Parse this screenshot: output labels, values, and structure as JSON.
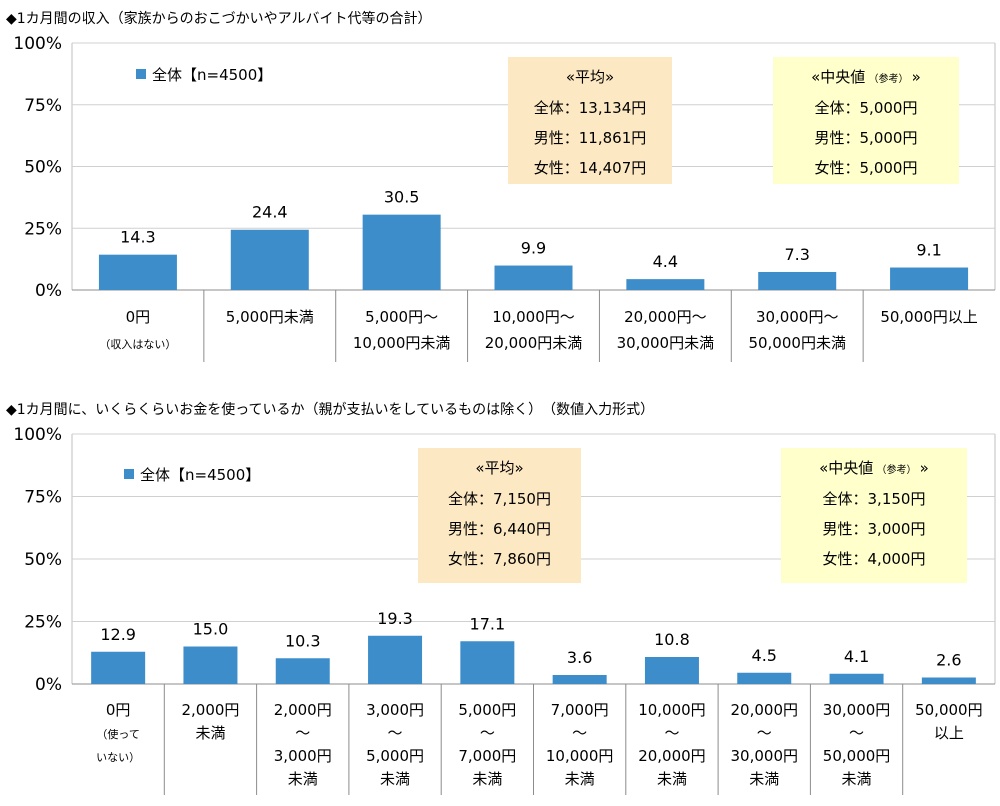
{
  "chart_data": [
    {
      "type": "bar",
      "title": "◆1カ月間の収入（家族からのおこづかいやアルバイト代等の合計）",
      "legend": "全体【n=4500】",
      "series": [
        {
          "name": "全体【n=4500】",
          "color": "#3C8DCA",
          "values": [
            14.3,
            24.4,
            30.5,
            9.9,
            4.4,
            7.3,
            9.1
          ]
        }
      ],
      "value_labels": [
        "14.3",
        "24.4",
        "30.5",
        "9.9",
        "4.4",
        "7.3",
        "9.1"
      ],
      "categories": [
        [
          "0円",
          "（収入はない）"
        ],
        [
          "5,000円未満"
        ],
        [
          "5,000円～",
          "10,000円未満"
        ],
        [
          "10,000円～",
          "20,000円未満"
        ],
        [
          "20,000円～",
          "30,000円未満"
        ],
        [
          "30,000円～",
          "50,000円未満"
        ],
        [
          "50,000円以上"
        ]
      ],
      "ylim": [
        0,
        100
      ],
      "yticks": [
        "0%",
        "25%",
        "50%",
        "75%",
        "100%"
      ],
      "grid": true,
      "xlabel": "",
      "ylabel": "",
      "boxes": [
        {
          "title": "«平均»",
          "lines": [
            "全体：13,134円",
            "男性：11,861円",
            "女性：14,407円"
          ],
          "color": "#FCE8C3"
        },
        {
          "title": "«中央値",
          "title_small": "（参考）",
          "title_end": "»",
          "lines": [
            "全体：5,000円",
            "男性：5,000円",
            "女性：5,000円"
          ],
          "color": "#FFFFCC"
        }
      ]
    },
    {
      "type": "bar",
      "title": "◆1カ月間に、いくらくらいお金を使っているか（親が支払いをしているものは除く）　（数値入力形式）",
      "legend": "全体【n=4500】",
      "series": [
        {
          "name": "全体【n=4500】",
          "color": "#3C8DCA",
          "values": [
            12.9,
            15.0,
            10.3,
            19.3,
            17.1,
            3.6,
            10.8,
            4.5,
            4.1,
            2.6
          ]
        }
      ],
      "value_labels": [
        "12.9",
        "15.0",
        "10.3",
        "19.3",
        "17.1",
        "3.6",
        "10.8",
        "4.5",
        "4.1",
        "2.6"
      ],
      "categories": [
        [
          "0円",
          "（使って",
          "いない）"
        ],
        [
          "2,000円",
          "未満"
        ],
        [
          "2,000円",
          "～",
          "3,000円",
          "未満"
        ],
        [
          "3,000円",
          "～",
          "5,000円",
          "未満"
        ],
        [
          "5,000円",
          "～",
          "7,000円",
          "未満"
        ],
        [
          "7,000円",
          "～",
          "10,000円",
          "未満"
        ],
        [
          "10,000円",
          "～",
          "20,000円",
          "未満"
        ],
        [
          "20,000円",
          "～",
          "30,000円",
          "未満"
        ],
        [
          "30,000円",
          "～",
          "50,000円",
          "未満"
        ],
        [
          "50,000円",
          "以上"
        ]
      ],
      "ylim": [
        0,
        100
      ],
      "yticks": [
        "0%",
        "25%",
        "50%",
        "75%",
        "100%"
      ],
      "grid": true,
      "xlabel": "",
      "ylabel": "",
      "boxes": [
        {
          "title": "«平均»",
          "lines": [
            "全体：7,150円",
            "男性：6,440円",
            "女性：7,860円"
          ],
          "color": "#FCE8C3"
        },
        {
          "title": "«中央値",
          "title_small": "（参考）",
          "title_end": "»",
          "lines": [
            "全体：3,150円",
            "男性：3,000円",
            "女性：4,000円"
          ],
          "color": "#FFFFCC"
        }
      ]
    }
  ]
}
